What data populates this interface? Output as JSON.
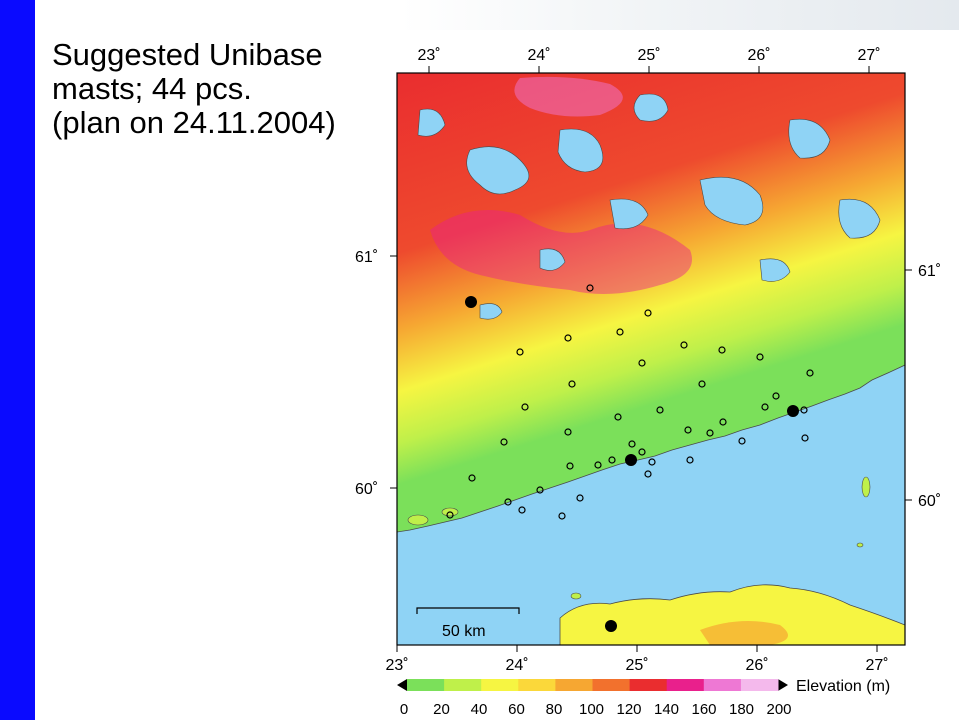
{
  "title": {
    "line1": "Suggested Unibase",
    "line2": "masts; 44 pcs.",
    "line3": "(plan on 24.11.2004)"
  },
  "map": {
    "lon_ticks_top": [
      "23˚",
      "24˚",
      "25˚",
      "26˚",
      "27˚"
    ],
    "lon_ticks_bottom": [
      "23˚",
      "24˚",
      "25˚",
      "26˚",
      "27˚"
    ],
    "lat_ticks_left": [
      "61˚",
      "60˚"
    ],
    "lat_ticks_right": [
      "61˚",
      "60˚"
    ],
    "scale_label": "50 km",
    "colors": {
      "sea": "#8fd3f5",
      "coast": "#4a4a4a",
      "mast": "#000000"
    }
  },
  "legend": {
    "label": "Elevation (m)",
    "ticks": [
      "0",
      "20",
      "40",
      "60",
      "80",
      "100",
      "120",
      "140",
      "160",
      "180",
      "200"
    ],
    "colors": [
      "#7be05a",
      "#bff04a",
      "#f6f542",
      "#fbd83a",
      "#f6a732",
      "#f2712d",
      "#ea2d2f",
      "#e9208c",
      "#ee78d4",
      "#f4b9ec"
    ]
  }
}
